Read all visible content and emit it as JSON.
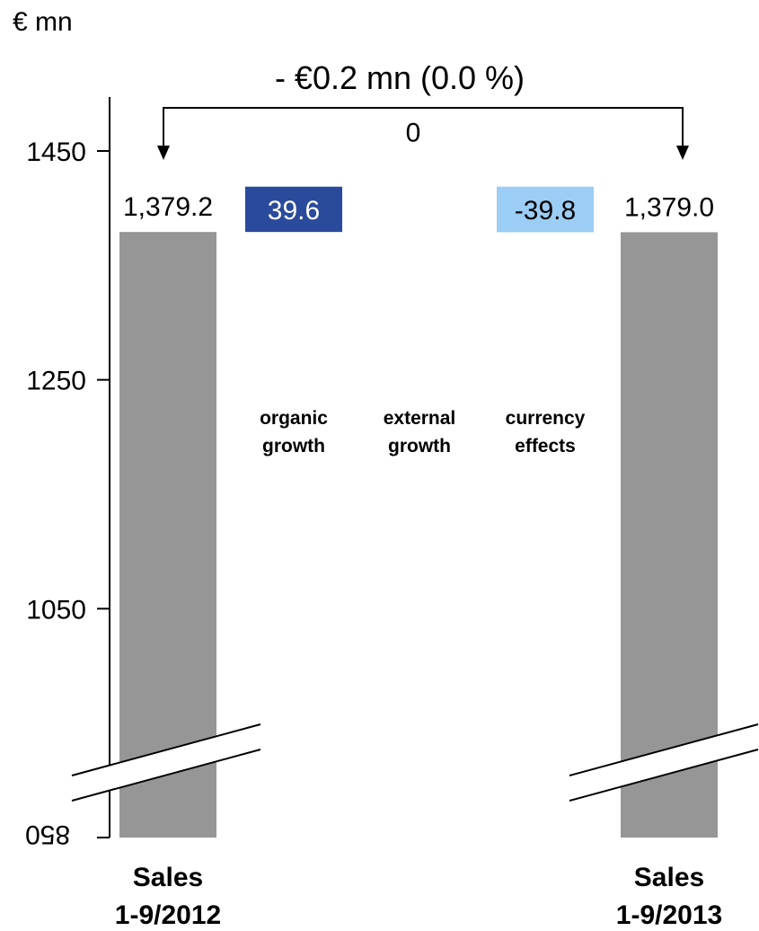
{
  "unit": "€ mn",
  "change_label": "- €0.2 mn (0.0 %)",
  "colors": {
    "total_bar": "#969696",
    "organic_growth": "#2a4a9c",
    "currency_effects": "#9ccdf4",
    "axis": "#000000"
  },
  "chart_data": {
    "type": "bar",
    "subtype": "waterfall",
    "ylabel": "€ mn",
    "ylim": [
      850,
      1450
    ],
    "yticks": [
      850,
      1050,
      1250,
      1450
    ],
    "axis_break": true,
    "bars": [
      {
        "category": "Sales\n1-9/2012",
        "category_lines": [
          "Sales",
          "1-9/2012"
        ],
        "kind": "total",
        "value": 1379.2,
        "label": "1,379.2"
      },
      {
        "category": "organic growth",
        "category_lines": [
          "organic",
          "growth"
        ],
        "kind": "delta",
        "value": 39.6,
        "label": "39.6"
      },
      {
        "category": "external growth",
        "category_lines": [
          "external",
          "growth"
        ],
        "kind": "delta",
        "value": 0,
        "label": "0"
      },
      {
        "category": "currency effects",
        "category_lines": [
          "currency",
          "effects"
        ],
        "kind": "delta",
        "value": -39.8,
        "label": "-39.8"
      },
      {
        "category": "Sales\n1-9/2013",
        "category_lines": [
          "Sales",
          "1-9/2013"
        ],
        "kind": "total",
        "value": 1379.0,
        "label": "1,379.0"
      }
    ],
    "annotation": "- €0.2 mn (0.0 %)"
  }
}
